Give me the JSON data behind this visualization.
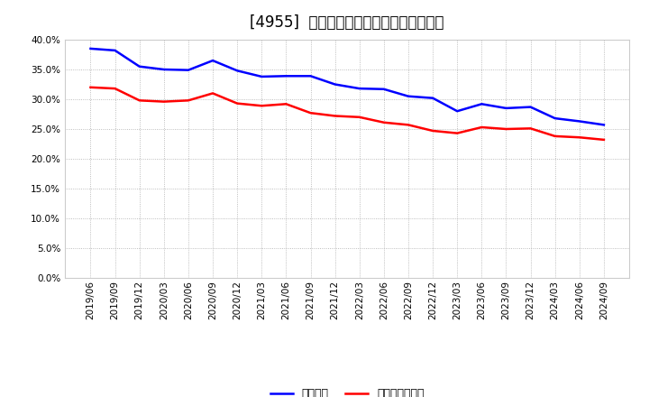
{
  "title": "[4955]  固定比率、固定長期適合率の推移",
  "x_labels": [
    "2019/06",
    "2019/09",
    "2019/12",
    "2020/03",
    "2020/06",
    "2020/09",
    "2020/12",
    "2021/03",
    "2021/06",
    "2021/09",
    "2021/12",
    "2022/03",
    "2022/06",
    "2022/09",
    "2022/12",
    "2023/03",
    "2023/06",
    "2023/09",
    "2023/12",
    "2024/03",
    "2024/06",
    "2024/09"
  ],
  "fixed_ratio": [
    38.5,
    38.2,
    35.5,
    35.0,
    34.9,
    36.5,
    34.8,
    33.8,
    33.9,
    33.9,
    32.5,
    31.8,
    31.7,
    30.5,
    30.2,
    28.0,
    29.2,
    28.5,
    28.7,
    26.8,
    26.3,
    25.7
  ],
  "fixed_longterm_ratio": [
    32.0,
    31.8,
    29.8,
    29.6,
    29.8,
    31.0,
    29.3,
    28.9,
    29.2,
    27.7,
    27.2,
    27.0,
    26.1,
    25.7,
    24.7,
    24.3,
    25.3,
    25.0,
    25.1,
    23.8,
    23.6,
    23.2
  ],
  "blue_color": "#0000ff",
  "red_color": "#ff0000",
  "bg_color": "#ffffff",
  "plot_bg_color": "#ffffff",
  "grid_color": "#aaaaaa",
  "ylim": [
    0,
    40
  ],
  "yticks": [
    0,
    5.0,
    10.0,
    15.0,
    20.0,
    25.0,
    30.0,
    35.0,
    40.0
  ],
  "legend_blue": "固定比率",
  "legend_red": "固定長期適合率",
  "title_fontsize": 12,
  "axis_fontsize": 7.5,
  "legend_fontsize": 9
}
